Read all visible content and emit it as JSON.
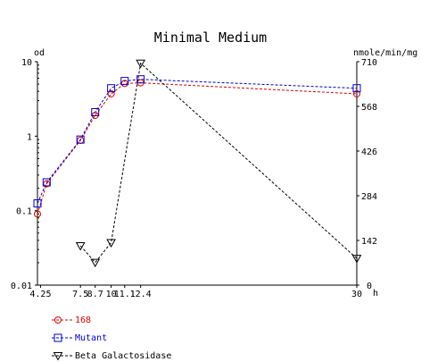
{
  "chart_data": {
    "type": "line",
    "title": "Minimal Medium",
    "ylabel_left": "od",
    "ylabel_right": "nmole/min/mg",
    "xlabel": "h",
    "left_axis": {
      "scale": "log",
      "range": [
        0.01,
        10
      ],
      "tick_labels": [
        "10",
        "1",
        "0.1",
        "0.01"
      ],
      "tick_values": [
        10,
        1,
        0.1,
        0.01
      ]
    },
    "right_axis": {
      "scale": "linear",
      "range": [
        0,
        710
      ],
      "tick_labels": [
        "710",
        "568",
        "426",
        "284",
        "142",
        "0"
      ],
      "tick_values": [
        710,
        568,
        426,
        284,
        142,
        0
      ]
    },
    "x_axis": {
      "range": [
        4,
        30
      ],
      "tick_labels": [
        "4.25",
        "7.5",
        "8.7",
        "10",
        "11.1",
        "12.4",
        "30"
      ],
      "tick_values": [
        4.25,
        7.5,
        8.7,
        10,
        11.1,
        12.4,
        30
      ]
    },
    "grid": false,
    "legend_position": "bottom-left",
    "series": [
      {
        "name": "168",
        "axis": "left",
        "marker": "circle",
        "color": "#dd0000",
        "x": [
          4,
          4.75,
          7.5,
          8.7,
          10,
          11.1,
          12.4,
          30
        ],
        "y": [
          0.09,
          0.23,
          0.88,
          1.9,
          3.7,
          5.1,
          5.2,
          3.7
        ]
      },
      {
        "name": "Mutant",
        "axis": "left",
        "marker": "square",
        "color": "#0000cc",
        "x": [
          4,
          4.75,
          7.5,
          8.7,
          10,
          11.1,
          12.4,
          30
        ],
        "y": [
          0.125,
          0.24,
          0.9,
          2.1,
          4.4,
          5.5,
          5.8,
          4.4
        ]
      },
      {
        "name": "Beta Galactosidase",
        "axis": "right",
        "marker": "triangle-down",
        "color": "#000000",
        "x": [
          7.5,
          8.7,
          10,
          12.4,
          30
        ],
        "y": [
          125,
          72,
          135,
          705,
          85
        ]
      }
    ]
  }
}
